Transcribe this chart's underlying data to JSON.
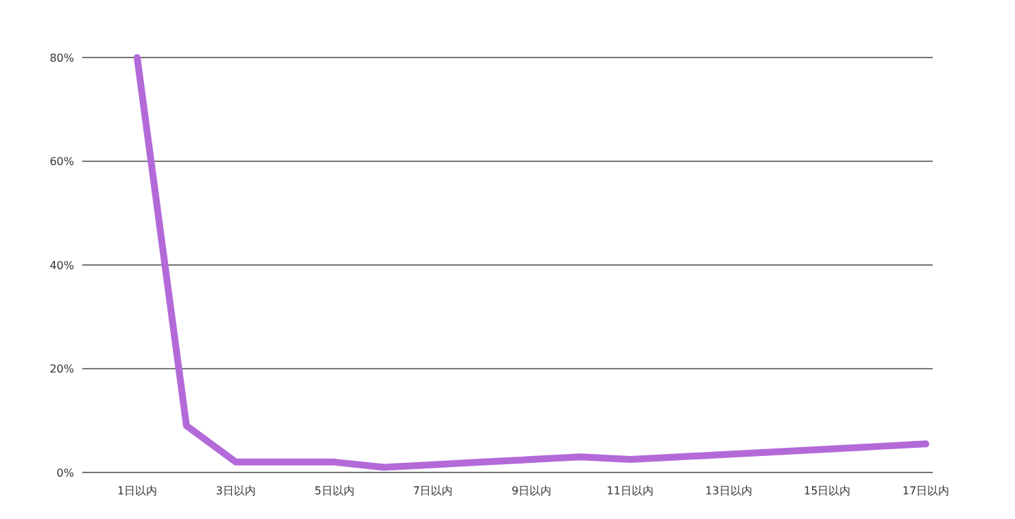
{
  "chart_data": {
    "type": "line",
    "categories": [
      "1日以内",
      null,
      "3日以内",
      null,
      "5日以内",
      null,
      "7日以内",
      null,
      "9日以内",
      null,
      "11日以内",
      null,
      "13日以内",
      null,
      "15日以内",
      null,
      "17日以内"
    ],
    "series": [
      {
        "color": "#b36ad8",
        "values": [
          80,
          9,
          2,
          2,
          2,
          1,
          1.5,
          2,
          2.5,
          3,
          2.5,
          3,
          3.5,
          4,
          4.5,
          5,
          5.5
        ]
      }
    ],
    "ylim": [
      0,
      80
    ],
    "yticks": [
      {
        "value": 0,
        "label": "0%"
      },
      {
        "value": 20,
        "label": "20%"
      },
      {
        "value": 40,
        "label": "40%"
      },
      {
        "value": 60,
        "label": "60%"
      },
      {
        "value": 80,
        "label": "80%"
      }
    ],
    "grid": "y",
    "marker": "none",
    "line_style": "solid"
  }
}
